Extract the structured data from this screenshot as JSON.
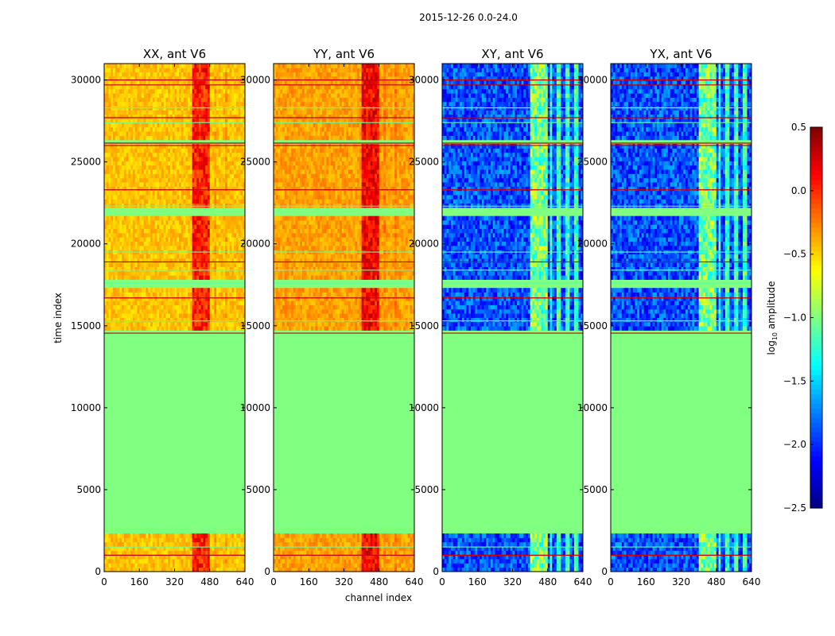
{
  "chart_data": {
    "type": "heatmap",
    "suptitle": "2015-12-26 0.0-24.0",
    "xlabel": "channel index",
    "ylabel": "time index",
    "xlim": [
      0,
      640
    ],
    "ylim": [
      0,
      31000
    ],
    "xticks": [
      0,
      160,
      320,
      480,
      640
    ],
    "yticks": [
      0,
      5000,
      10000,
      15000,
      20000,
      25000,
      30000
    ],
    "colorbar": {
      "label_prefix": "log",
      "label_sub": "10",
      "label_suffix": " amplitude",
      "vmin": -2.5,
      "vmax": 0.5,
      "ticks": [
        -2.5,
        -2.0,
        -1.5,
        -1.0,
        -0.5,
        0.0,
        0.5
      ],
      "tick_labels": [
        "−2.5",
        "−2.0",
        "−1.5",
        "−1.0",
        "−0.5",
        "0.0",
        "0.5"
      ],
      "colormap": "jet"
    },
    "masked_value": -1.0,
    "data_blocks_time": [
      [
        0,
        2200
      ],
      [
        14600,
        17400
      ],
      [
        17700,
        21600
      ],
      [
        22100,
        26200
      ],
      [
        26300,
        31000
      ]
    ],
    "bright_channel_band": [
      400,
      480
    ],
    "panels": [
      {
        "title": "XX, ant V6",
        "kind": "parallel",
        "base_level": -0.45,
        "band_level": -0.05
      },
      {
        "title": "YY, ant V6",
        "kind": "parallel",
        "base_level": -0.35,
        "band_level": 0.05
      },
      {
        "title": "XY, ant V6",
        "kind": "cross",
        "base_level": -2.2,
        "band_level": -1.1
      },
      {
        "title": "YX, ant V6",
        "kind": "cross",
        "base_level": -2.2,
        "band_level": -1.1
      }
    ]
  }
}
